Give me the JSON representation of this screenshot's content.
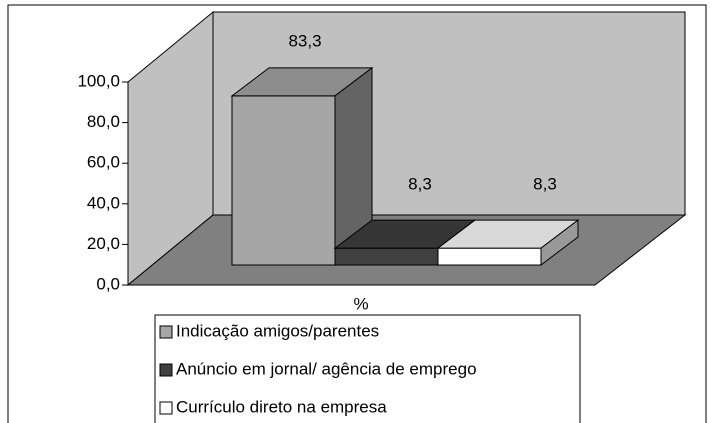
{
  "chart_data": {
    "type": "bar3d",
    "categories": [
      "%"
    ],
    "series": [
      {
        "name": "Indicação amigos/parentes",
        "color": "#a6a6a6",
        "values": [
          83.3
        ],
        "value_labels": [
          "83,3"
        ]
      },
      {
        "name": "Anúncio em jornal/ agência de emprego",
        "color": "#404040",
        "values": [
          8.3
        ],
        "value_labels": [
          "8,3"
        ]
      },
      {
        "name": "Currículo direto na empresa",
        "color": "#ffffff",
        "values": [
          8.3
        ],
        "value_labels": [
          "8,3"
        ]
      }
    ],
    "ylim": [
      0,
      100
    ],
    "yticks": [
      {
        "value": 0,
        "label": "0,0"
      },
      {
        "value": 20,
        "label": "20,0"
      },
      {
        "value": 40,
        "label": "40,0"
      },
      {
        "value": 60,
        "label": "60,0"
      },
      {
        "value": 80,
        "label": "80,0"
      },
      {
        "value": 100,
        "label": "100,0"
      }
    ]
  }
}
